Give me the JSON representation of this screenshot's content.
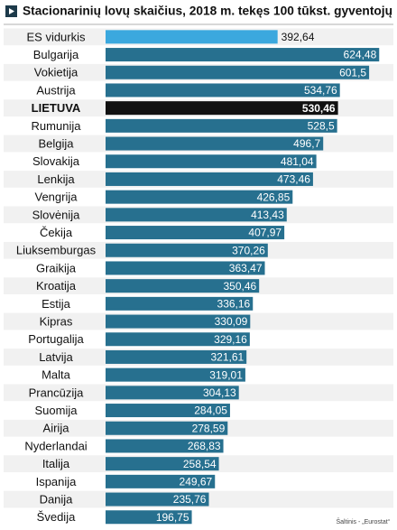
{
  "chart_data": {
    "type": "hbar",
    "title": "Stacionarinių lovų skaičius, 2018 m. tekęs 100 tūkst. gyventojų",
    "source": "Šaltinis - „Eurostat“",
    "categories": [
      "ES vidurkis",
      "Bulgarija",
      "Vokietija",
      "Austrija",
      "LIETUVA",
      "Rumunija",
      "Belgija",
      "Slovakija",
      "Lenkija",
      "Vengrija",
      "Slovėnija",
      "Čekija",
      "Liuksemburgas",
      "Graikija",
      "Kroatija",
      "Estija",
      "Kipras",
      "Portugalija",
      "Latvija",
      "Malta",
      "Prancūzija",
      "Suomija",
      "Airija",
      "Nyderlandai",
      "Italija",
      "Ispanija",
      "Danija",
      "Švedija"
    ],
    "values": [
      392.64,
      624.48,
      601.5,
      534.76,
      530.46,
      528.5,
      496.7,
      481.04,
      473.46,
      426.85,
      413.43,
      407.97,
      370.26,
      363.47,
      350.46,
      336.16,
      330.09,
      329.16,
      321.61,
      319.01,
      304.13,
      284.05,
      278.59,
      268.83,
      258.54,
      249.67,
      235.76,
      196.75
    ],
    "value_labels": [
      "392,64",
      "624,48",
      "601,5",
      "534,76",
      "530,46",
      "528,5",
      "496,7",
      "481,04",
      "473,46",
      "426,85",
      "413,43",
      "407,97",
      "370,26",
      "363,47",
      "350,46",
      "336,16",
      "330,09",
      "329,16",
      "321,61",
      "319,01",
      "304,13",
      "284,05",
      "278,59",
      "268,83",
      "258,54",
      "249,67",
      "235,76",
      "196,75"
    ],
    "color": "#27708f",
    "reference_index": 0,
    "reference_color": "#3ba8de",
    "highlight_index": 4,
    "highlight_color": "#111111",
    "xlim": [
      0,
      626
    ]
  }
}
